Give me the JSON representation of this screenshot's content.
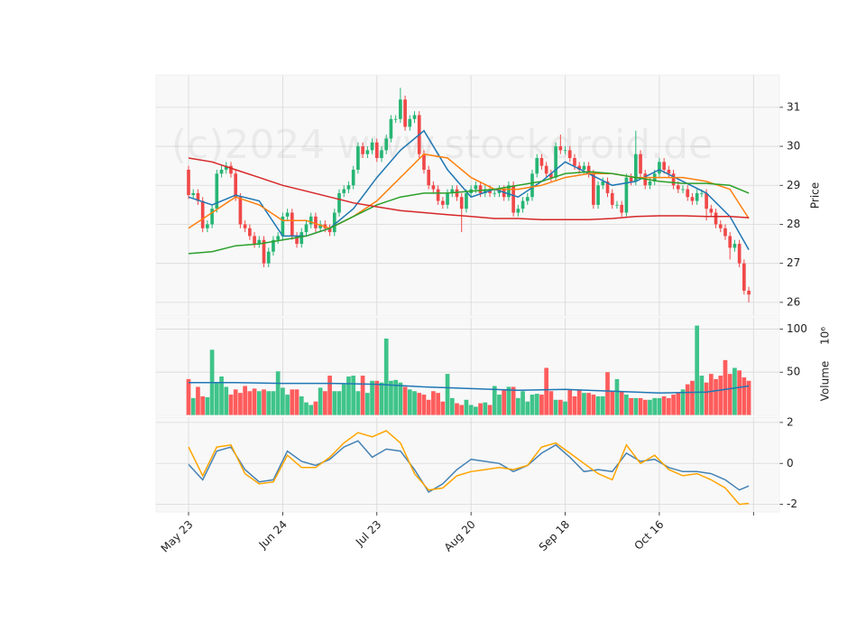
{
  "chart_data": [
    {
      "type": "candlestick",
      "watermark": "(c)2024 www.stockdroid.de",
      "ylabel": "Price",
      "ylim": [
        25.65,
        31.83
      ],
      "yticks": [
        26,
        27,
        28,
        29,
        30,
        31
      ],
      "up_color": "#26b573",
      "down_color": "#f04848",
      "x": [
        0,
        1,
        2,
        3,
        4,
        5,
        6,
        7,
        8,
        9,
        10,
        11,
        12,
        13,
        14,
        15,
        16,
        17,
        18,
        19,
        20,
        21,
        22,
        23,
        24,
        25,
        26,
        27,
        28,
        29,
        30,
        31,
        32,
        33,
        34,
        35,
        36,
        37,
        38,
        39,
        40,
        41,
        42,
        43,
        44,
        45,
        46,
        47,
        48,
        49,
        50,
        51,
        52,
        53,
        54,
        55,
        56,
        57,
        58,
        59,
        60,
        61,
        62,
        63,
        64,
        65,
        66,
        67,
        68,
        69,
        70,
        71,
        72,
        73,
        74,
        75,
        76,
        77,
        78,
        79,
        80,
        81,
        82,
        83,
        84,
        85,
        86,
        87,
        88,
        89,
        90,
        91,
        92,
        93,
        94,
        95,
        96,
        97,
        98,
        99,
        100,
        101,
        102,
        103,
        104,
        105,
        106,
        107,
        108,
        109,
        110,
        111,
        112,
        113,
        114,
        115,
        116,
        117,
        118,
        119
      ],
      "open": [
        29.4,
        28.75,
        28.8,
        28.6,
        27.9,
        28.0,
        28.4,
        29.3,
        29.4,
        29.5,
        29.3,
        28.7,
        28.0,
        27.9,
        27.7,
        27.5,
        27.6,
        27.0,
        27.3,
        27.6,
        27.7,
        28.2,
        28.3,
        27.7,
        27.5,
        27.8,
        28.0,
        28.2,
        27.9,
        28.0,
        27.9,
        27.8,
        28.3,
        28.8,
        28.9,
        29.0,
        29.4,
        30.0,
        29.8,
        29.9,
        30.1,
        29.7,
        29.9,
        30.2,
        30.7,
        30.7,
        31.2,
        30.5,
        30.7,
        30.8,
        29.8,
        29.4,
        29.0,
        28.9,
        28.6,
        28.5,
        28.8,
        28.9,
        28.7,
        28.4,
        28.8,
        28.9,
        29.0,
        28.8,
        28.9,
        28.8,
        28.8,
        28.9,
        28.7,
        29.0,
        28.3,
        28.4,
        28.6,
        28.7,
        29.3,
        29.7,
        29.5,
        29.3,
        29.2,
        30.0,
        29.9,
        29.9,
        29.7,
        29.5,
        29.4,
        29.5,
        29.3,
        28.5,
        29.0,
        29.1,
        28.8,
        28.5,
        28.5,
        28.3,
        29.2,
        29.1,
        29.8,
        29.3,
        29.0,
        29.1,
        29.3,
        29.6,
        29.4,
        29.3,
        29.0,
        28.9,
        28.9,
        28.7,
        28.6,
        28.8,
        28.8,
        28.4,
        28.3,
        28.0,
        27.9,
        27.7,
        27.4,
        27.5,
        27.0,
        26.3
      ],
      "high": [
        29.5,
        28.9,
        28.9,
        28.7,
        28.1,
        28.5,
        29.4,
        29.5,
        29.6,
        29.6,
        29.4,
        28.8,
        28.1,
        28.0,
        27.8,
        27.7,
        27.7,
        27.4,
        27.7,
        27.8,
        28.3,
        28.4,
        28.4,
        27.8,
        27.9,
        28.1,
        28.3,
        28.3,
        28.1,
        28.1,
        28.0,
        28.4,
        28.9,
        29.0,
        29.1,
        29.5,
        30.1,
        30.1,
        30.0,
        30.2,
        30.2,
        30.0,
        30.3,
        30.8,
        30.8,
        31.5,
        31.3,
        30.8,
        30.9,
        30.9,
        29.9,
        29.5,
        29.1,
        29.0,
        28.7,
        28.9,
        29.0,
        29.0,
        28.8,
        28.9,
        29.0,
        29.1,
        29.1,
        29.0,
        29.0,
        28.9,
        29.0,
        29.0,
        29.1,
        29.1,
        28.5,
        28.7,
        28.8,
        29.4,
        29.8,
        29.8,
        29.6,
        29.4,
        30.1,
        30.3,
        30.0,
        30.0,
        29.8,
        29.6,
        29.6,
        29.6,
        29.4,
        29.1,
        29.2,
        29.2,
        28.9,
        28.6,
        28.6,
        29.3,
        29.3,
        30.4,
        29.9,
        29.4,
        29.2,
        29.4,
        29.7,
        29.7,
        29.5,
        29.4,
        29.1,
        29.0,
        29.0,
        28.8,
        28.9,
        28.9,
        28.9,
        28.5,
        28.4,
        28.1,
        28.0,
        27.8,
        27.6,
        27.6,
        27.1,
        26.4
      ],
      "low": [
        28.65,
        28.65,
        28.5,
        27.8,
        27.8,
        27.9,
        28.3,
        29.2,
        29.3,
        29.2,
        28.6,
        27.9,
        27.8,
        27.6,
        27.4,
        27.4,
        26.9,
        26.9,
        27.2,
        27.5,
        27.6,
        28.1,
        27.6,
        27.4,
        27.4,
        27.7,
        27.9,
        27.8,
        27.8,
        27.8,
        27.7,
        27.7,
        28.2,
        28.7,
        28.8,
        28.9,
        29.3,
        29.7,
        29.7,
        29.8,
        29.6,
        29.6,
        29.8,
        30.1,
        30.6,
        30.6,
        30.4,
        30.4,
        30.6,
        29.7,
        29.3,
        28.9,
        28.8,
        28.5,
        28.4,
        28.4,
        28.7,
        28.6,
        27.8,
        28.3,
        28.7,
        28.8,
        28.7,
        28.7,
        28.7,
        28.7,
        28.7,
        28.6,
        28.6,
        28.2,
        28.2,
        28.3,
        28.5,
        28.6,
        29.2,
        29.4,
        29.2,
        29.1,
        29.1,
        29.8,
        29.8,
        29.6,
        29.4,
        29.3,
        29.3,
        29.2,
        28.4,
        28.4,
        28.9,
        28.7,
        28.4,
        28.4,
        28.2,
        28.2,
        29.0,
        29.0,
        29.2,
        28.9,
        28.9,
        29.0,
        29.2,
        29.3,
        29.2,
        28.9,
        28.8,
        28.8,
        28.6,
        28.5,
        28.5,
        28.7,
        28.1,
        28.2,
        27.9,
        27.8,
        27.6,
        27.1,
        27.3,
        26.9,
        26.2,
        26.0
      ],
      "close": [
        28.75,
        28.8,
        28.6,
        27.9,
        28.0,
        28.4,
        29.3,
        29.4,
        29.5,
        29.3,
        28.7,
        28.0,
        27.9,
        27.7,
        27.5,
        27.6,
        27.0,
        27.3,
        27.6,
        27.7,
        28.2,
        28.3,
        27.7,
        27.5,
        27.8,
        28.0,
        28.2,
        27.9,
        28.0,
        27.9,
        27.8,
        28.3,
        28.8,
        28.9,
        29.0,
        29.4,
        30.0,
        29.8,
        29.9,
        30.1,
        29.7,
        29.9,
        30.2,
        30.7,
        30.7,
        31.2,
        30.5,
        30.7,
        30.8,
        29.8,
        29.4,
        29.0,
        28.9,
        28.6,
        28.5,
        28.8,
        28.9,
        28.7,
        28.4,
        28.8,
        28.9,
        29.0,
        28.8,
        28.9,
        28.8,
        28.8,
        28.9,
        28.7,
        29.0,
        28.3,
        28.4,
        28.6,
        28.7,
        29.3,
        29.7,
        29.5,
        29.3,
        29.2,
        30.0,
        29.9,
        29.9,
        29.7,
        29.5,
        29.4,
        29.5,
        29.3,
        28.5,
        29.0,
        29.1,
        28.8,
        28.5,
        28.5,
        28.3,
        29.2,
        29.1,
        29.8,
        29.3,
        29.0,
        29.1,
        29.3,
        29.6,
        29.4,
        29.3,
        29.0,
        28.9,
        28.9,
        28.7,
        28.6,
        28.8,
        28.8,
        28.4,
        28.3,
        28.0,
        27.9,
        27.7,
        27.4,
        27.5,
        27.0,
        26.3,
        26.2
      ],
      "series": [
        {
          "color": "#1f77b4",
          "x": [
            0,
            5,
            10,
            15,
            20,
            25,
            30,
            35,
            40,
            45,
            50,
            55,
            60,
            65,
            70,
            75,
            80,
            85,
            90,
            95,
            100,
            105,
            110,
            115,
            119
          ],
          "values": [
            28.7,
            28.5,
            28.75,
            28.6,
            27.7,
            27.7,
            27.9,
            28.4,
            29.2,
            29.9,
            30.4,
            29.4,
            28.7,
            28.9,
            28.7,
            29.1,
            29.6,
            29.3,
            29.0,
            29.1,
            29.4,
            29.1,
            28.8,
            28.2,
            27.35
          ]
        },
        {
          "color": "#ff7f0e",
          "x": [
            0,
            5,
            10,
            15,
            20,
            25,
            30,
            35,
            40,
            45,
            50,
            55,
            60,
            65,
            70,
            75,
            80,
            85,
            90,
            95,
            100,
            105,
            110,
            115,
            119
          ],
          "values": [
            27.9,
            28.3,
            28.7,
            28.5,
            28.1,
            28.1,
            27.9,
            28.2,
            28.6,
            29.2,
            29.8,
            29.7,
            29.2,
            28.9,
            28.9,
            29.0,
            29.2,
            29.3,
            29.3,
            29.2,
            29.2,
            29.2,
            29.1,
            28.9,
            28.15
          ]
        },
        {
          "color": "#2ca02c",
          "x": [
            0,
            5,
            10,
            15,
            20,
            25,
            30,
            35,
            40,
            45,
            50,
            55,
            60,
            65,
            70,
            75,
            80,
            85,
            90,
            95,
            100,
            105,
            110,
            115,
            119
          ],
          "values": [
            27.25,
            27.3,
            27.45,
            27.5,
            27.6,
            27.7,
            27.9,
            28.2,
            28.5,
            28.7,
            28.8,
            28.8,
            28.85,
            28.9,
            29.0,
            29.1,
            29.3,
            29.35,
            29.3,
            29.2,
            29.1,
            29.05,
            29.05,
            29.0,
            28.8
          ]
        },
        {
          "color": "#d62728",
          "x": [
            0,
            5,
            10,
            15,
            20,
            25,
            30,
            35,
            40,
            45,
            50,
            55,
            60,
            65,
            70,
            75,
            80,
            85,
            90,
            95,
            100,
            105,
            110,
            115,
            119
          ],
          "values": [
            29.7,
            29.6,
            29.4,
            29.2,
            29.0,
            28.85,
            28.7,
            28.55,
            28.45,
            28.35,
            28.3,
            28.25,
            28.2,
            28.15,
            28.15,
            28.12,
            28.12,
            28.12,
            28.15,
            28.2,
            28.22,
            28.22,
            28.2,
            28.2,
            28.17
          ]
        }
      ]
    },
    {
      "type": "bar",
      "ylabel": "Volume",
      "offset_text": "10⁶",
      "ylim": [
        0,
        113
      ],
      "yticks": [
        50,
        100
      ],
      "up_color": "#3fc48a",
      "down_color": "#ff5c5c",
      "values": [
        42,
        20,
        33,
        22,
        21,
        76,
        38,
        45,
        33,
        24,
        30,
        26,
        34,
        28,
        31,
        28,
        30,
        28,
        28,
        51,
        32,
        24,
        30,
        30,
        22,
        15,
        12,
        16,
        32,
        28,
        46,
        28,
        28,
        36,
        45,
        46,
        28,
        46,
        26,
        40,
        40,
        38,
        89,
        40,
        41,
        38,
        33,
        30,
        28,
        26,
        24,
        18,
        28,
        26,
        16,
        48,
        20,
        14,
        12,
        18,
        12,
        10,
        14,
        15,
        12,
        34,
        24,
        29,
        33,
        33,
        20,
        28,
        16,
        24,
        25,
        24,
        55,
        28,
        18,
        18,
        16,
        30,
        22,
        30,
        26,
        26,
        24,
        22,
        22,
        50,
        28,
        42,
        28,
        24,
        20,
        20,
        20,
        18,
        18,
        20,
        20,
        22,
        20,
        24,
        26,
        30,
        36,
        40,
        104,
        46,
        38,
        48,
        42,
        46,
        64,
        48,
        55,
        52,
        44,
        40
      ],
      "series": [
        {
          "color": "#1f77b4",
          "x": [
            0,
            10,
            20,
            30,
            40,
            50,
            60,
            70,
            80,
            90,
            100,
            110,
            119
          ],
          "values": [
            38,
            38,
            37,
            37,
            36,
            33,
            31,
            29,
            30,
            28,
            26,
            27,
            34
          ]
        }
      ]
    },
    {
      "type": "line",
      "ylim": [
        -2.37,
        2.26
      ],
      "yticks": [
        -2,
        0,
        2
      ],
      "xlim": [
        -6.9,
        125.5
      ],
      "xticks": [
        {
          "value": 0,
          "label": "May 23"
        },
        {
          "value": 20,
          "label": "Jun 24"
        },
        {
          "value": 40,
          "label": "Jul 23"
        },
        {
          "value": 60,
          "label": "Aug 20"
        },
        {
          "value": 80,
          "label": "Sep 18"
        },
        {
          "value": 100,
          "label": "Oct 16"
        },
        {
          "value": 120,
          "label": null
        }
      ],
      "series": [
        {
          "color": "#4682b4",
          "x": [
            0,
            3,
            6,
            9,
            12,
            15,
            18,
            21,
            24,
            27,
            30,
            33,
            36,
            39,
            42,
            45,
            48,
            51,
            54,
            57,
            60,
            63,
            66,
            69,
            72,
            75,
            78,
            81,
            84,
            87,
            90,
            93,
            96,
            99,
            102,
            105,
            108,
            111,
            114,
            117,
            119
          ],
          "values": [
            -0.05,
            -0.8,
            0.6,
            0.8,
            -0.3,
            -0.9,
            -0.8,
            0.6,
            0.1,
            -0.1,
            0.2,
            0.8,
            1.1,
            0.3,
            0.7,
            0.6,
            -0.3,
            -1.4,
            -1.0,
            -0.3,
            0.2,
            0.1,
            0.0,
            -0.4,
            -0.1,
            0.5,
            0.9,
            0.3,
            -0.4,
            -0.3,
            -0.4,
            0.5,
            0.1,
            0.2,
            -0.2,
            -0.4,
            -0.4,
            -0.5,
            -0.8,
            -1.3,
            -1.1
          ]
        },
        {
          "color": "#ffa500",
          "x": [
            0,
            3,
            6,
            9,
            12,
            15,
            18,
            21,
            24,
            27,
            30,
            33,
            36,
            39,
            42,
            45,
            48,
            51,
            54,
            57,
            60,
            63,
            66,
            69,
            72,
            75,
            78,
            81,
            84,
            87,
            90,
            93,
            96,
            99,
            102,
            105,
            108,
            111,
            114,
            117,
            119
          ],
          "values": [
            0.8,
            -0.6,
            0.8,
            0.9,
            -0.5,
            -1.0,
            -0.9,
            0.4,
            -0.2,
            -0.2,
            0.3,
            1.0,
            1.5,
            1.3,
            1.6,
            1.0,
            -0.5,
            -1.3,
            -1.2,
            -0.6,
            -0.4,
            -0.3,
            -0.2,
            -0.3,
            -0.1,
            0.8,
            1.0,
            0.5,
            0.0,
            -0.5,
            -0.8,
            0.9,
            0.0,
            0.4,
            -0.3,
            -0.6,
            -0.5,
            -0.8,
            -1.2,
            -2.0,
            -1.95
          ]
        }
      ]
    }
  ]
}
